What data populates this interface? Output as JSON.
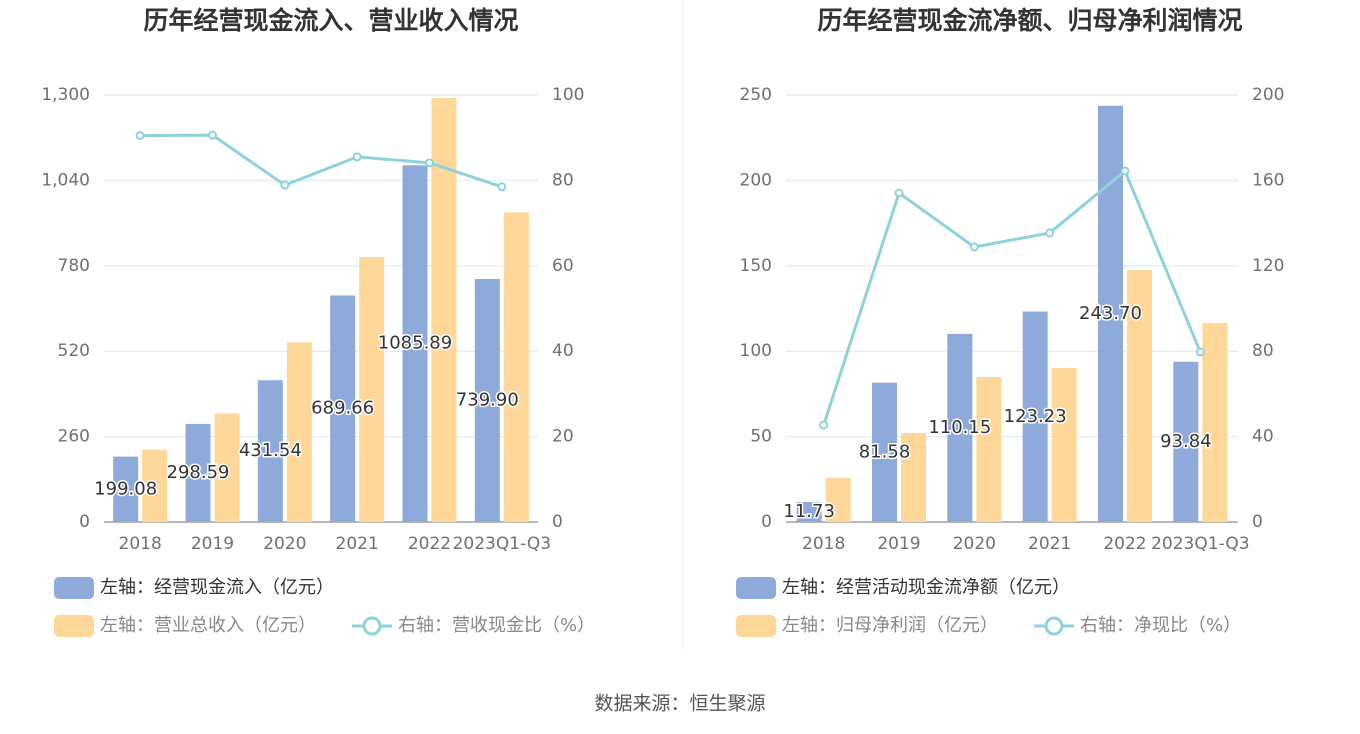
{
  "chart_data": [
    {
      "type": "bar",
      "title": "历年经营现金流入、营业收入情况",
      "categories": [
        "2018",
        "2019",
        "2020",
        "2021",
        "2022",
        "2023Q1-Q3"
      ],
      "series": [
        {
          "name": "左轴：经营现金流入（亿元）",
          "color": "#8eaadb",
          "values": [
            199.08,
            298.59,
            431.54,
            689.66,
            1085.89,
            739.9
          ],
          "value_labels": [
            "199.08",
            "298.59",
            "431.54",
            "689.66",
            "1085.89",
            "739.90"
          ]
        },
        {
          "name": "左轴：营业总收入（亿元）",
          "color": "#ffd899",
          "values": [
            220,
            329.6,
            547,
            806.6,
            1291,
            942.6
          ]
        },
        {
          "name": "右轴：营收现金比（%）",
          "color": "#8dd3d9",
          "type": "line",
          "axis": "y2",
          "values": [
            90.5,
            90.6,
            78.9,
            85.5,
            84.1,
            78.5
          ]
        }
      ],
      "ylim": [
        0,
        1300
      ],
      "yticks": [
        0,
        260,
        520,
        780,
        {
          "value": 1040,
          "label": "1,040"
        },
        {
          "value": 1300,
          "label": "1,300"
        }
      ],
      "y2lim": [
        0,
        100
      ],
      "y2ticks": [
        0,
        20,
        40,
        60,
        80,
        100
      ],
      "grid": true
    },
    {
      "type": "bar",
      "title": "历年经营现金流净额、归母净利润情况",
      "categories": [
        "2018",
        "2019",
        "2020",
        "2021",
        "2022",
        "2023Q1-Q3"
      ],
      "series": [
        {
          "name": "左轴：经营活动现金流净额（亿元）",
          "color": "#8eaadb",
          "values": [
            11.73,
            81.58,
            110.15,
            123.23,
            243.7,
            93.84
          ],
          "value_labels": [
            "11.73",
            "81.58",
            "110.15",
            "123.23",
            "243.70",
            "93.84"
          ]
        },
        {
          "name": "左轴：归母净利润（亿元）",
          "color": "#ffd899",
          "values": [
            25.8,
            52.1,
            84.9,
            90.2,
            147.5,
            116.5
          ]
        },
        {
          "name": "右轴：净现比（%）",
          "color": "#8dd3d9",
          "type": "line",
          "axis": "y2",
          "values": [
            45.4,
            154.1,
            128.8,
            135.4,
            164.4,
            79.6
          ]
        }
      ],
      "ylim": [
        0,
        250
      ],
      "yticks": [
        0,
        50,
        100,
        150,
        200,
        250
      ],
      "y2lim": [
        0,
        200
      ],
      "y2ticks": [
        0,
        40,
        80,
        120,
        160,
        200
      ],
      "grid": true
    }
  ],
  "source": "数据来源：恒生聚源"
}
